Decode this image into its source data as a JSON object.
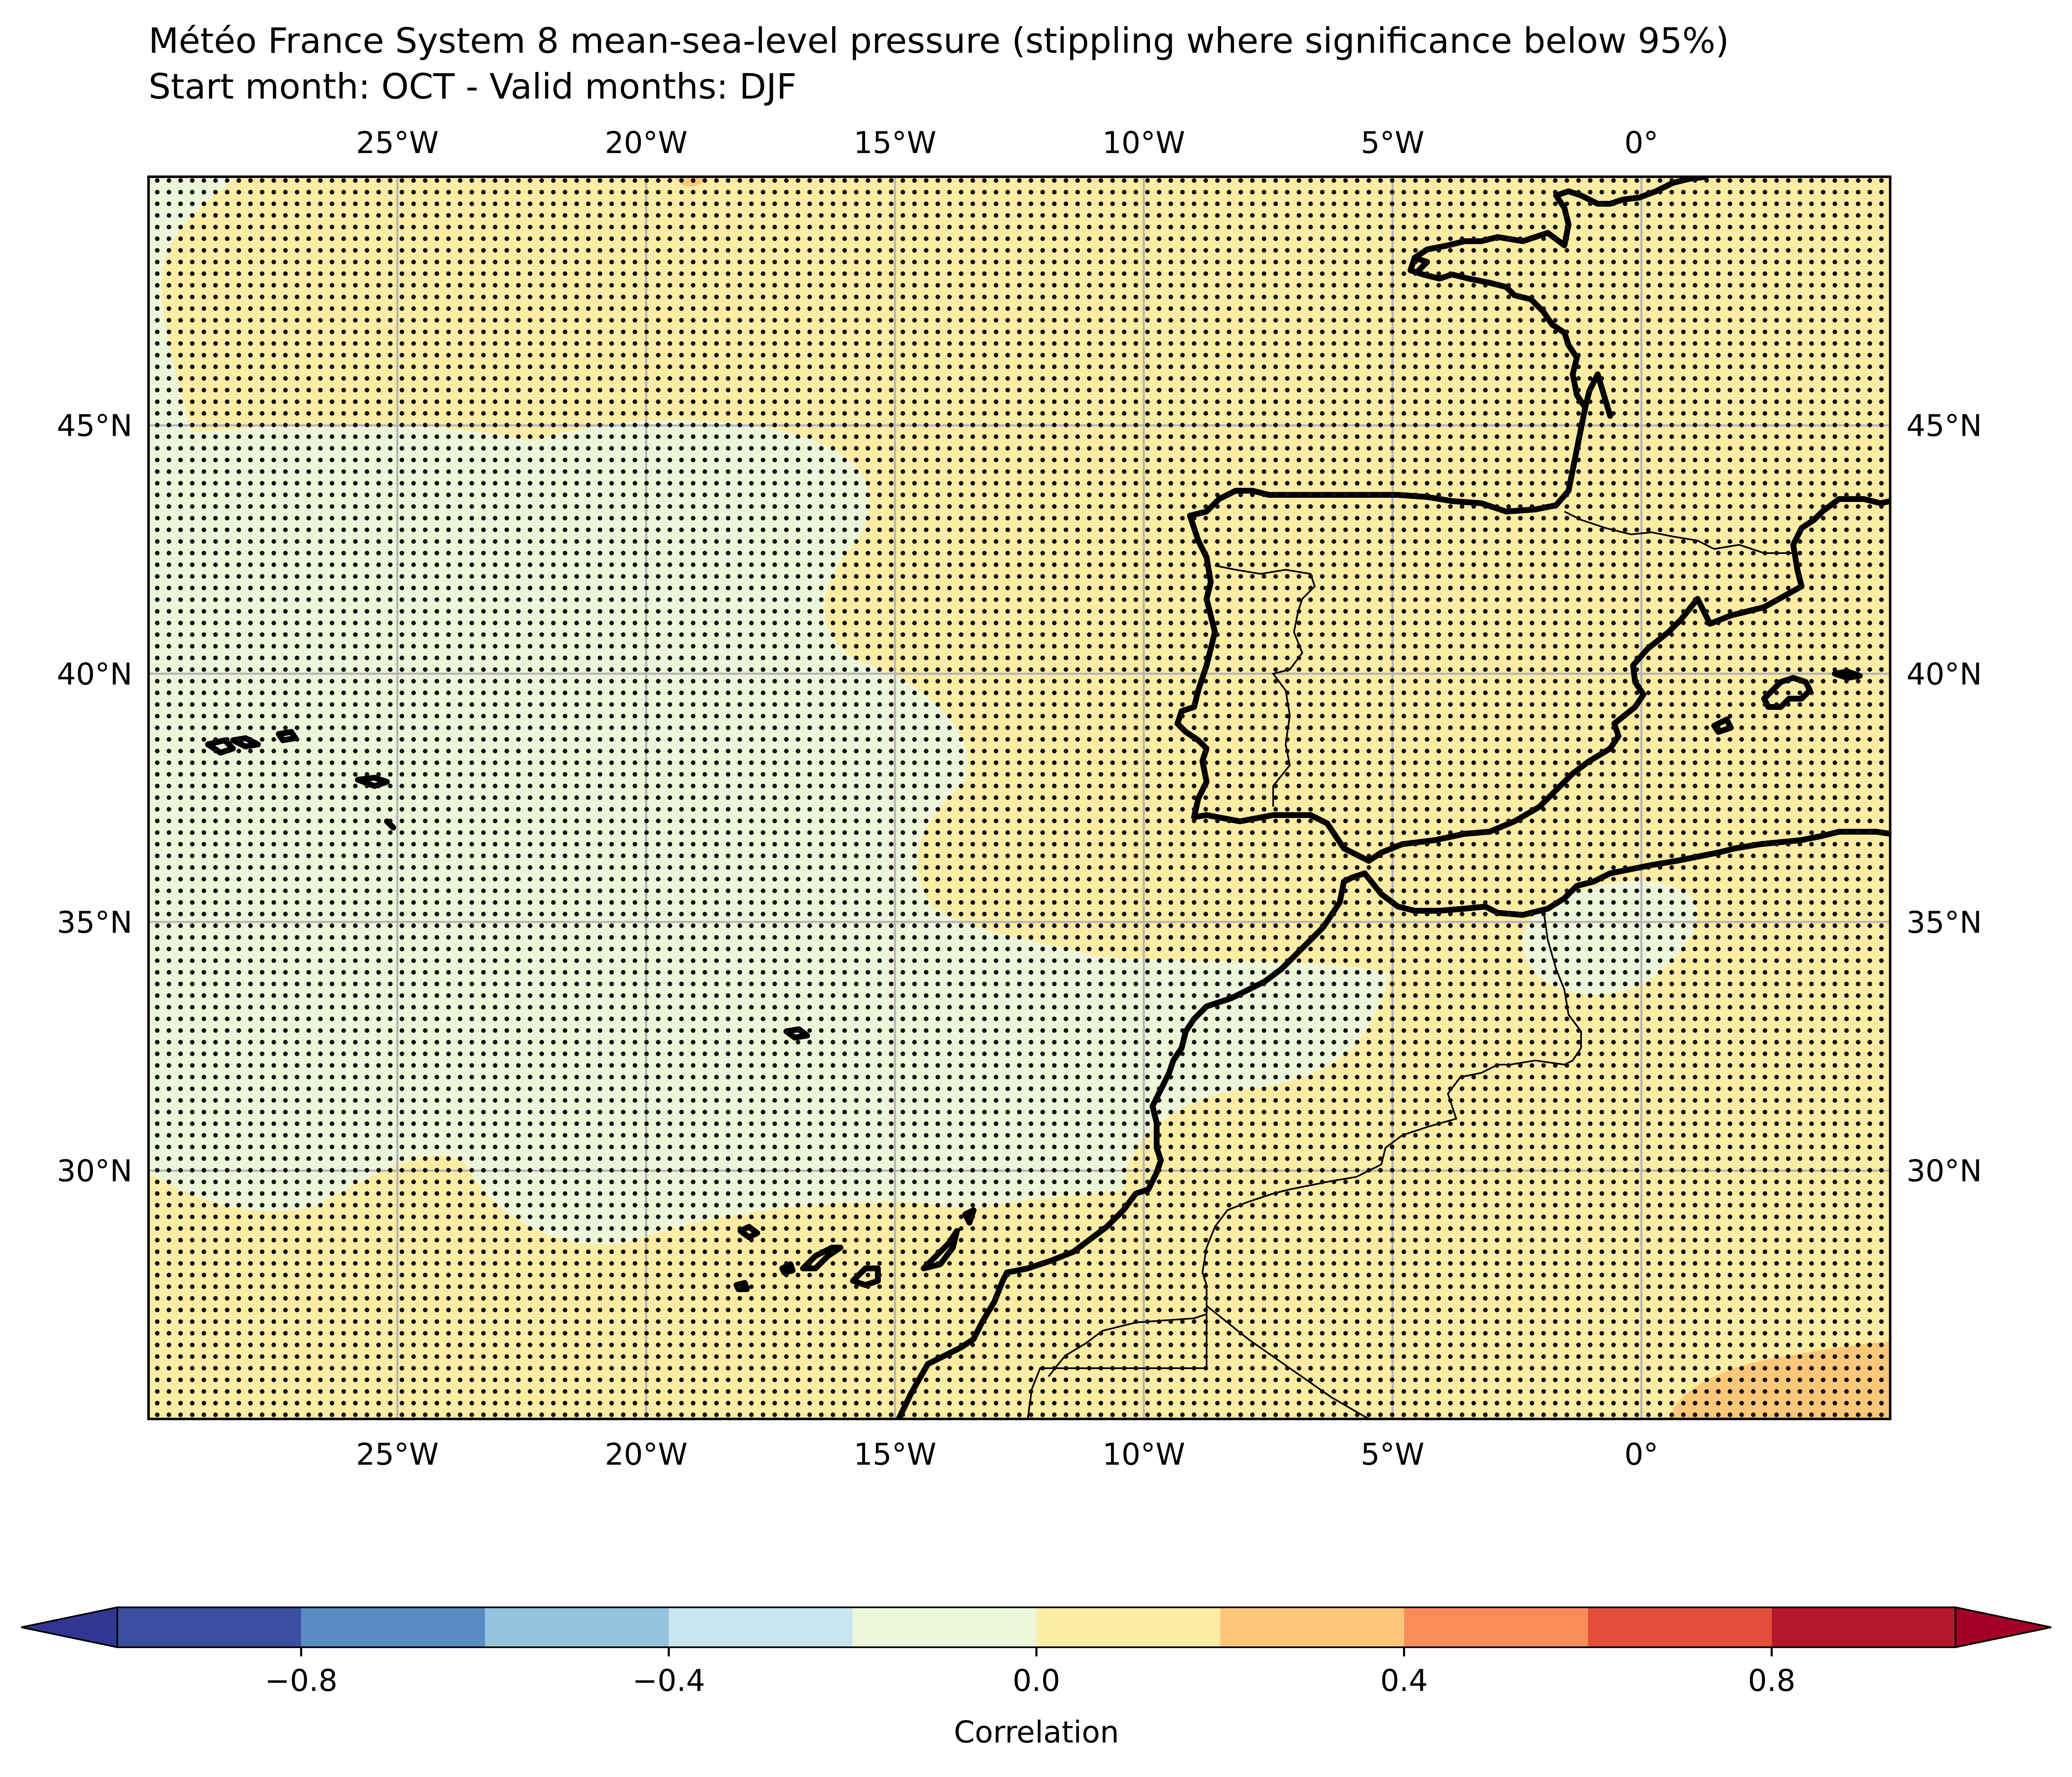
{
  "title": {
    "line1": "Météo France System 8 mean-sea-level pressure (stippling where significance below 95%)",
    "line2": "Start month: OCT - Valid months: DJF"
  },
  "map": {
    "projection": "PlateCarree",
    "lon_range": [
      -30,
      5
    ],
    "lat_range": [
      25,
      50
    ],
    "lon_ticks": [
      {
        "value": -25,
        "label": "25°W"
      },
      {
        "value": -20,
        "label": "20°W"
      },
      {
        "value": -15,
        "label": "15°W"
      },
      {
        "value": -10,
        "label": "10°W"
      },
      {
        "value": -5,
        "label": "5°W"
      },
      {
        "value": 0,
        "label": "0°"
      }
    ],
    "lat_ticks": [
      {
        "value": 45,
        "label": "45°N"
      },
      {
        "value": 40,
        "label": "40°N"
      },
      {
        "value": 35,
        "label": "35°N"
      },
      {
        "value": 30,
        "label": "30°N"
      }
    ],
    "grid": true,
    "stippling": "entire domain (significance below 95%)",
    "field_colors": {
      "range_-0.2_0": "#eef6da",
      "range_0_0.2": "#fdeca3",
      "range_0.2_0.4": "#fdc77a"
    }
  },
  "colorbar": {
    "label": "Correlation",
    "levels": [
      -1.0,
      -0.8,
      -0.6,
      -0.4,
      -0.2,
      0.0,
      0.2,
      0.4,
      0.6,
      0.8,
      1.0
    ],
    "colors": [
      "#3a4fa0",
      "#5a8bc2",
      "#92c4de",
      "#c8e5f0",
      "#eef6da",
      "#fdeca3",
      "#fdc77a",
      "#f88d59",
      "#e24e3a",
      "#b5172a"
    ],
    "extend_colors": {
      "min": "#313695",
      "max": "#a50026"
    },
    "ticks": [
      {
        "value": -0.8,
        "label": "−0.8"
      },
      {
        "value": -0.4,
        "label": "−0.4"
      },
      {
        "value": 0.0,
        "label": "0.0"
      },
      {
        "value": 0.4,
        "label": "0.4"
      },
      {
        "value": 0.8,
        "label": "0.8"
      }
    ]
  }
}
